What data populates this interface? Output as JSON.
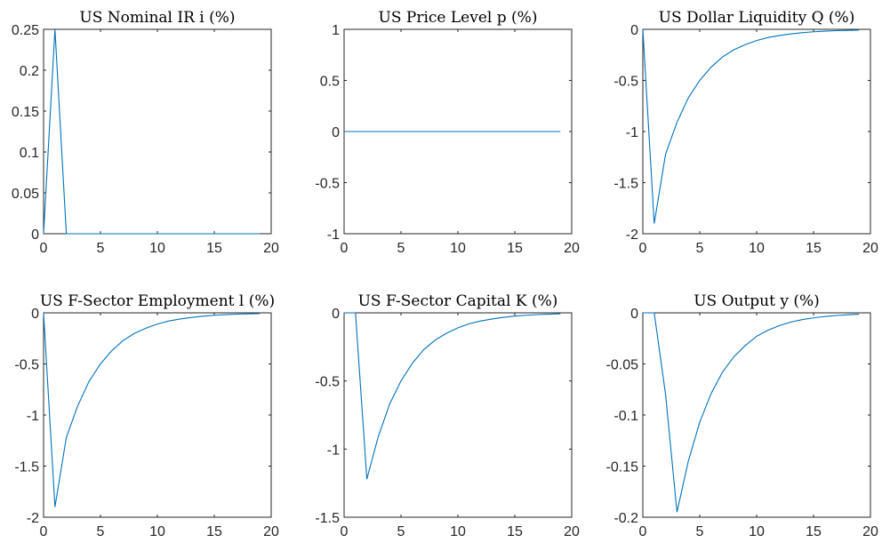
{
  "colors": {
    "series": "#0072bd",
    "axis": "#262626"
  },
  "chart_data": [
    {
      "type": "line",
      "title": "US Nominal IR i (%)",
      "xlim": [
        0,
        20
      ],
      "ylim": [
        0,
        0.25
      ],
      "xticks": [
        0,
        5,
        10,
        15,
        20
      ],
      "yticks": [
        0,
        0.05,
        0.1,
        0.15,
        0.2,
        0.25
      ],
      "ytick_labels": [
        "0",
        "0.05",
        "0.1",
        "0.15",
        "0.2",
        "0.25"
      ],
      "series": [
        {
          "x": [
            0,
            1,
            2,
            3,
            4,
            5,
            6,
            7,
            8,
            9,
            10,
            11,
            12,
            13,
            14,
            15,
            16,
            17,
            18,
            19
          ],
          "y": [
            0,
            0.25,
            0,
            0,
            0,
            0,
            0,
            0,
            0,
            0,
            0,
            0,
            0,
            0,
            0,
            0,
            0,
            0,
            0,
            0
          ]
        }
      ]
    },
    {
      "type": "line",
      "title": "US Price Level p (%)",
      "xlim": [
        0,
        20
      ],
      "ylim": [
        -1,
        1
      ],
      "xticks": [
        0,
        5,
        10,
        15,
        20
      ],
      "yticks": [
        -1,
        -0.5,
        0,
        0.5,
        1
      ],
      "ytick_labels": [
        "-1",
        "-0.5",
        "0",
        "0.5",
        "1"
      ],
      "series": [
        {
          "x": [
            0,
            1,
            2,
            3,
            4,
            5,
            6,
            7,
            8,
            9,
            10,
            11,
            12,
            13,
            14,
            15,
            16,
            17,
            18,
            19
          ],
          "y": [
            0,
            0,
            0,
            0,
            0,
            0,
            0,
            0,
            0,
            0,
            0,
            0,
            0,
            0,
            0,
            0,
            0,
            0,
            0,
            0
          ]
        }
      ]
    },
    {
      "type": "line",
      "title": "US Dollar Liquidity Q (%)",
      "xlim": [
        0,
        20
      ],
      "ylim": [
        -2,
        0
      ],
      "xticks": [
        0,
        5,
        10,
        15,
        20
      ],
      "yticks": [
        -2,
        -1.5,
        -1,
        -0.5,
        0
      ],
      "ytick_labels": [
        "-2",
        "-1.5",
        "-1",
        "-0.5",
        "0"
      ],
      "series": [
        {
          "x": [
            0,
            1,
            2,
            3,
            4,
            5,
            6,
            7,
            8,
            9,
            10,
            11,
            12,
            13,
            14,
            15,
            16,
            17,
            18,
            19
          ],
          "y": [
            0,
            -1.9,
            -1.22,
            -0.91,
            -0.67,
            -0.5,
            -0.37,
            -0.27,
            -0.2,
            -0.15,
            -0.11,
            -0.08,
            -0.06,
            -0.045,
            -0.033,
            -0.024,
            -0.018,
            -0.013,
            -0.01,
            -0.007
          ]
        }
      ]
    },
    {
      "type": "line",
      "title": "US F-Sector Employment l (%)",
      "xlim": [
        0,
        20
      ],
      "ylim": [
        -2,
        0
      ],
      "xticks": [
        0,
        5,
        10,
        15,
        20
      ],
      "yticks": [
        -2,
        -1.5,
        -1,
        -0.5,
        0
      ],
      "ytick_labels": [
        "-2",
        "-1.5",
        "-1",
        "-0.5",
        "0"
      ],
      "series": [
        {
          "x": [
            0,
            1,
            2,
            3,
            4,
            5,
            6,
            7,
            8,
            9,
            10,
            11,
            12,
            13,
            14,
            15,
            16,
            17,
            18,
            19
          ],
          "y": [
            0,
            -1.9,
            -1.22,
            -0.91,
            -0.67,
            -0.5,
            -0.37,
            -0.27,
            -0.2,
            -0.15,
            -0.11,
            -0.08,
            -0.06,
            -0.045,
            -0.033,
            -0.024,
            -0.018,
            -0.013,
            -0.01,
            -0.007
          ]
        }
      ]
    },
    {
      "type": "line",
      "title": "US F-Sector Capital K (%)",
      "xlim": [
        0,
        20
      ],
      "ylim": [
        -1.5,
        0
      ],
      "xticks": [
        0,
        5,
        10,
        15,
        20
      ],
      "yticks": [
        -1.5,
        -1,
        -0.5,
        0
      ],
      "ytick_labels": [
        "-1.5",
        "-1",
        "-0.5",
        "0"
      ],
      "series": [
        {
          "x": [
            0,
            1,
            2,
            3,
            4,
            5,
            6,
            7,
            8,
            9,
            10,
            11,
            12,
            13,
            14,
            15,
            16,
            17,
            18,
            19
          ],
          "y": [
            0,
            0,
            -1.22,
            -0.91,
            -0.67,
            -0.5,
            -0.37,
            -0.27,
            -0.2,
            -0.15,
            -0.11,
            -0.08,
            -0.06,
            -0.045,
            -0.033,
            -0.024,
            -0.018,
            -0.013,
            -0.01,
            -0.007
          ]
        }
      ]
    },
    {
      "type": "line",
      "title": "US Output y (%)",
      "xlim": [
        0,
        20
      ],
      "ylim": [
        -0.2,
        0
      ],
      "xticks": [
        0,
        5,
        10,
        15,
        20
      ],
      "yticks": [
        -0.2,
        -0.15,
        -0.1,
        -0.05,
        0
      ],
      "ytick_labels": [
        "-0.2",
        "-0.15",
        "-0.1",
        "-0.05",
        "0"
      ],
      "series": [
        {
          "x": [
            0,
            1,
            2,
            3,
            4,
            5,
            6,
            7,
            8,
            9,
            10,
            11,
            12,
            13,
            14,
            15,
            16,
            17,
            18,
            19
          ],
          "y": [
            0,
            0,
            -0.08,
            -0.195,
            -0.145,
            -0.107,
            -0.079,
            -0.058,
            -0.043,
            -0.032,
            -0.023,
            -0.017,
            -0.0125,
            -0.009,
            -0.0067,
            -0.0049,
            -0.0036,
            -0.0026,
            -0.0019,
            -0.0014
          ]
        }
      ]
    }
  ]
}
